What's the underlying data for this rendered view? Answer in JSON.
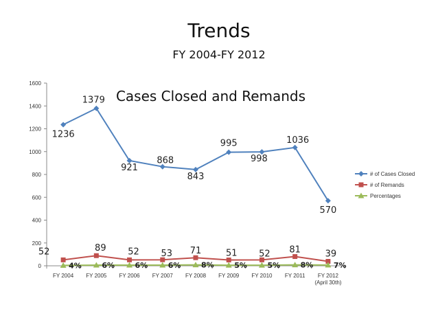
{
  "slide": {
    "title": "Trends",
    "subtitle": "FY 2004-FY 2012"
  },
  "chart_data": {
    "type": "line",
    "title": "Cases Closed and Remands",
    "categories": [
      "FY 2004",
      "FY 2005",
      "FY 2006",
      "FY 2007",
      "FY 2008",
      "FY 2009",
      "FY 2010",
      "FY 2011",
      "FY 2012 (April 30th)"
    ],
    "category_lines": [
      [
        "FY 2004"
      ],
      [
        "FY 2005"
      ],
      [
        "FY 2006"
      ],
      [
        "FY 2007"
      ],
      [
        "FY 2008"
      ],
      [
        "FY 2009"
      ],
      [
        "FY 2010"
      ],
      [
        "FY 2011"
      ],
      [
        "FY 2012",
        "(April 30th)"
      ]
    ],
    "ylim": [
      0,
      1600
    ],
    "yticks": [
      0,
      200,
      400,
      600,
      800,
      1000,
      1200,
      1400,
      1600
    ],
    "grid": false,
    "legend_position": "right",
    "series": [
      {
        "name": "# of Cases Closed",
        "color": "#4f81bd",
        "marker": "diamond",
        "values": [
          1236,
          1379,
          921,
          868,
          843,
          995,
          998,
          1036,
          570
        ]
      },
      {
        "name": "# of Remands",
        "color": "#c0504d",
        "marker": "square",
        "values": [
          52,
          89,
          52,
          53,
          71,
          51,
          52,
          81,
          39
        ]
      },
      {
        "name": "Percentages",
        "color": "#9bbb59",
        "marker": "triangle",
        "values": [
          4,
          6,
          6,
          6,
          8,
          5,
          5,
          8,
          7
        ],
        "labels": [
          "4%",
          "6%",
          "6%",
          "6%",
          "8%",
          "5%",
          "5%",
          "8%",
          "7%"
        ]
      }
    ]
  }
}
